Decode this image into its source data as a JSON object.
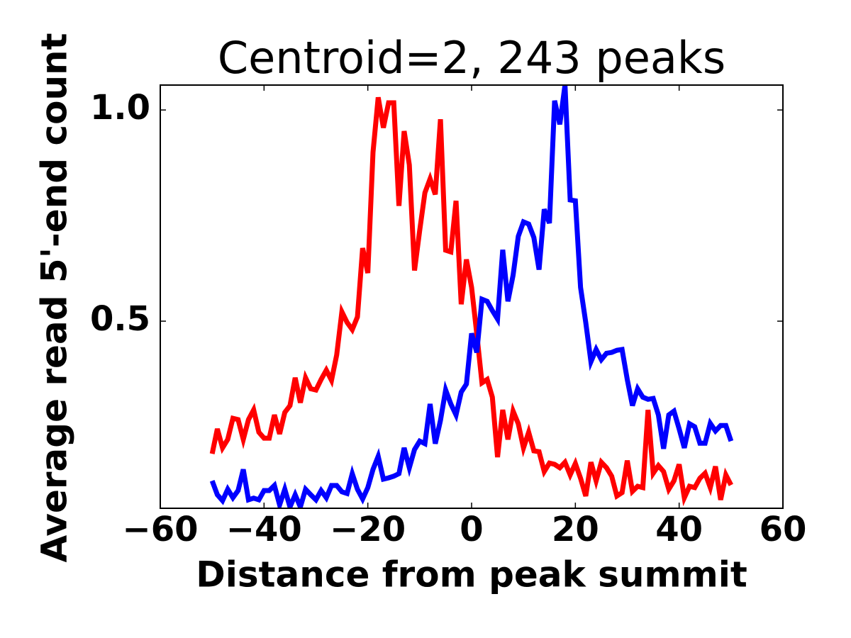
{
  "chart_data": {
    "type": "line",
    "title": "Centroid=2, 243 peaks",
    "x_label": "Distance from peak summit",
    "y_label": "Average read 5'-end count",
    "x": [
      -50,
      -49,
      -48,
      -47,
      -46,
      -45,
      -44,
      -43,
      -42,
      -41,
      -40,
      -39,
      -38,
      -37,
      -36,
      -35,
      -34,
      -33,
      -32,
      -31,
      -30,
      -29,
      -28,
      -27,
      -26,
      -25,
      -24,
      -23,
      -22,
      -21,
      -20,
      -19,
      -18,
      -17,
      -16,
      -15,
      -14,
      -13,
      -12,
      -11,
      -10,
      -9,
      -8,
      -7,
      -6,
      -5,
      -4,
      -3,
      -2,
      -1,
      0,
      1,
      2,
      3,
      4,
      5,
      6,
      7,
      8,
      9,
      10,
      11,
      12,
      13,
      14,
      15,
      16,
      17,
      18,
      19,
      20,
      21,
      22,
      23,
      24,
      25,
      26,
      27,
      28,
      29,
      30,
      31,
      32,
      33,
      34,
      35,
      36,
      37,
      38,
      39,
      40,
      41,
      42,
      43,
      44,
      45,
      46,
      47,
      48,
      49,
      50
    ],
    "series": [
      {
        "color": "#ff0000",
        "values": [
          0.186,
          0.245,
          0.2,
          0.22,
          0.27,
          0.267,
          0.22,
          0.267,
          0.29,
          0.237,
          0.223,
          0.223,
          0.278,
          0.233,
          0.284,
          0.3,
          0.366,
          0.307,
          0.366,
          0.34,
          0.337,
          0.362,
          0.384,
          0.36,
          0.42,
          0.522,
          0.497,
          0.48,
          0.51,
          0.673,
          0.614,
          0.9,
          1.03,
          0.958,
          1.017,
          1.017,
          0.773,
          0.95,
          0.87,
          0.62,
          0.715,
          0.804,
          0.837,
          0.8,
          0.978,
          0.668,
          0.664,
          0.785,
          0.54,
          0.646,
          0.58,
          0.47,
          0.354,
          0.362,
          0.32,
          0.178,
          0.29,
          0.22,
          0.287,
          0.257,
          0.2,
          0.237,
          0.193,
          0.191,
          0.144,
          0.164,
          0.161,
          0.153,
          0.166,
          0.136,
          0.163,
          0.128,
          0.086,
          0.166,
          0.122,
          0.166,
          0.153,
          0.133,
          0.086,
          0.094,
          0.17,
          0.097,
          0.109,
          0.106,
          0.29,
          0.14,
          0.158,
          0.144,
          0.102,
          0.122,
          0.161,
          0.082,
          0.109,
          0.106,
          0.128,
          0.14,
          0.106,
          0.156,
          0.077,
          0.136,
          0.112
        ]
      },
      {
        "color": "#0000ff",
        "values": [
          0.122,
          0.089,
          0.075,
          0.102,
          0.082,
          0.099,
          0.149,
          0.077,
          0.081,
          0.077,
          0.099,
          0.099,
          0.111,
          0.065,
          0.102,
          0.06,
          0.089,
          0.06,
          0.102,
          0.089,
          0.077,
          0.099,
          0.082,
          0.111,
          0.111,
          0.096,
          0.092,
          0.139,
          0.102,
          0.079,
          0.106,
          0.149,
          0.18,
          0.126,
          0.129,
          0.133,
          0.139,
          0.2,
          0.153,
          0.196,
          0.216,
          0.21,
          0.304,
          0.21,
          0.265,
          0.337,
          0.304,
          0.278,
          0.332,
          0.351,
          0.471,
          0.426,
          0.552,
          0.547,
          0.525,
          0.505,
          0.669,
          0.547,
          0.609,
          0.701,
          0.735,
          0.73,
          0.698,
          0.622,
          0.765,
          0.732,
          1.022,
          0.966,
          1.059,
          0.787,
          0.785,
          0.58,
          0.497,
          0.404,
          0.433,
          0.409,
          0.424,
          0.426,
          0.431,
          0.433,
          0.362,
          0.3,
          0.34,
          0.32,
          0.315,
          0.317,
          0.278,
          0.198,
          0.278,
          0.287,
          0.245,
          0.2,
          0.257,
          0.25,
          0.211,
          0.211,
          0.258,
          0.24,
          0.253,
          0.253,
          0.216
        ]
      }
    ],
    "xlim": [
      -60,
      60
    ],
    "ylim": [
      0.057,
      1.059
    ],
    "xticks": [
      {
        "value": -60,
        "label": "−60"
      },
      {
        "value": -40,
        "label": "−40"
      },
      {
        "value": -20,
        "label": "−20"
      },
      0,
      20,
      40,
      60
    ],
    "yticks": [
      0.5,
      {
        "value": 1,
        "label": "1.0"
      }
    ]
  }
}
